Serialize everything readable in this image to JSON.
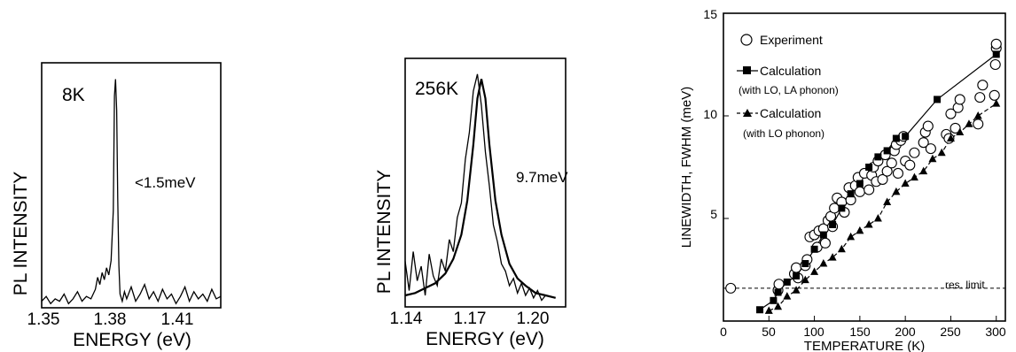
{
  "chart_data": [
    {
      "type": "line",
      "panel_label": "8K",
      "annotation": "<1.5meV",
      "xlabel": "ENERGY (eV)",
      "ylabel": "PL INTENSITY",
      "x_ticks": [
        "1.35",
        "1.38",
        "1.41"
      ],
      "xlim": [
        1.35,
        1.43
      ],
      "ylim": [
        0,
        1
      ],
      "series": [
        {
          "x": [
            1.35,
            1.352,
            1.354,
            1.356,
            1.358,
            1.36,
            1.362,
            1.364,
            1.366,
            1.368,
            1.37,
            1.372,
            1.374,
            1.375,
            1.376,
            1.377,
            1.378,
            1.379,
            1.38,
            1.381,
            1.382,
            1.3825,
            1.383,
            1.3835,
            1.384,
            1.3845,
            1.385,
            1.386,
            1.387,
            1.388,
            1.39,
            1.392,
            1.394,
            1.396,
            1.398,
            1.4,
            1.402,
            1.404,
            1.406,
            1.408,
            1.41,
            1.412,
            1.414,
            1.416,
            1.418,
            1.42,
            1.422,
            1.424,
            1.426,
            1.428,
            1.43
          ],
          "y": [
            0.02,
            0.04,
            0.01,
            0.03,
            0.02,
            0.05,
            0.01,
            0.03,
            0.06,
            0.02,
            0.04,
            0.03,
            0.07,
            0.12,
            0.09,
            0.14,
            0.11,
            0.16,
            0.13,
            0.19,
            0.4,
            0.88,
            0.95,
            0.82,
            0.45,
            0.17,
            0.05,
            0.02,
            0.06,
            0.03,
            0.08,
            0.02,
            0.05,
            0.09,
            0.03,
            0.06,
            0.02,
            0.07,
            0.03,
            0.05,
            0.01,
            0.04,
            0.08,
            0.02,
            0.06,
            0.03,
            0.05,
            0.02,
            0.07,
            0.03,
            0.04
          ]
        }
      ]
    },
    {
      "type": "line",
      "panel_label": "256K",
      "annotation": "9.7meV",
      "xlabel": "ENERGY (eV)",
      "ylabel": "PL INTENSITY",
      "x_ticks": [
        "1.14",
        "1.17",
        "1.20"
      ],
      "xlim": [
        1.14,
        1.22
      ],
      "ylim": [
        0,
        1
      ],
      "series": [
        {
          "x": [
            1.14,
            1.142,
            1.144,
            1.146,
            1.148,
            1.15,
            1.152,
            1.154,
            1.156,
            1.158,
            1.16,
            1.162,
            1.164,
            1.166,
            1.168,
            1.17,
            1.172,
            1.174,
            1.176,
            1.178,
            1.18,
            1.182,
            1.184,
            1.186,
            1.188,
            1.19,
            1.192,
            1.194,
            1.196,
            1.198,
            1.2,
            1.202,
            1.204,
            1.206,
            1.208,
            1.21
          ],
          "y": [
            0.18,
            0.06,
            0.22,
            0.1,
            0.16,
            0.04,
            0.21,
            0.12,
            0.08,
            0.19,
            0.14,
            0.27,
            0.22,
            0.36,
            0.42,
            0.6,
            0.71,
            0.88,
            0.95,
            0.82,
            0.63,
            0.49,
            0.33,
            0.26,
            0.17,
            0.14,
            0.08,
            0.11,
            0.05,
            0.09,
            0.04,
            0.07,
            0.03,
            0.06,
            0.02,
            0.04
          ]
        },
        {
          "x": [
            1.14,
            1.145,
            1.15,
            1.155,
            1.16,
            1.164,
            1.168,
            1.171,
            1.174,
            1.176,
            1.178,
            1.18,
            1.182,
            1.185,
            1.188,
            1.192,
            1.196,
            1.2,
            1.205,
            1.21,
            1.215
          ],
          "y": [
            0.04,
            0.05,
            0.07,
            0.09,
            0.13,
            0.19,
            0.29,
            0.43,
            0.66,
            0.85,
            0.93,
            0.85,
            0.66,
            0.43,
            0.29,
            0.17,
            0.11,
            0.08,
            0.05,
            0.04,
            0.03
          ]
        }
      ]
    },
    {
      "type": "scatter",
      "xlabel": "TEMPERATURE (K)",
      "ylabel": "LINEWIDTH, FWHM (meV)",
      "xlim": [
        0,
        310
      ],
      "ylim": [
        0,
        15
      ],
      "x_ticks": [
        "0",
        "50",
        "100",
        "150",
        "200",
        "250",
        "300"
      ],
      "y_ticks": [
        "5",
        "10",
        "15"
      ],
      "legend": {
        "experiment": "Experiment",
        "calc1_line1": "Calculation",
        "calc1_line2": "(with LO, LA phonon)",
        "calc2_line1": "Calculation",
        "calc2_line2": "(with LO phonon)"
      },
      "res_limit_label": "res. limit",
      "res_limit": 1.6,
      "series": [
        {
          "name": "Experiment",
          "marker": "open-circle",
          "x": [
            8,
            60,
            61,
            78,
            80,
            82,
            90,
            92,
            95,
            100,
            103,
            105,
            110,
            112,
            115,
            118,
            120,
            122,
            125,
            130,
            133,
            138,
            140,
            145,
            148,
            150,
            155,
            160,
            163,
            165,
            168,
            170,
            175,
            178,
            180,
            185,
            188,
            190,
            192,
            195,
            198,
            200,
            205,
            210,
            220,
            222,
            225,
            228,
            245,
            248,
            250,
            255,
            258,
            260,
            280,
            282,
            285,
            298,
            299,
            300,
            300
          ],
          "y": [
            1.6,
            1.5,
            1.8,
            2.3,
            2.6,
            2.1,
            2.7,
            3.0,
            4.1,
            4.2,
            3.6,
            4.4,
            4.5,
            3.8,
            4.9,
            5.1,
            4.6,
            5.5,
            6.0,
            5.8,
            5.3,
            6.5,
            5.9,
            6.6,
            7.0,
            6.3,
            7.2,
            6.4,
            7.1,
            7.5,
            6.8,
            7.8,
            6.9,
            8.1,
            7.3,
            7.7,
            8.3,
            8.6,
            7.2,
            8.8,
            9.0,
            7.8,
            7.6,
            8.2,
            8.7,
            9.2,
            9.5,
            8.4,
            9.1,
            8.9,
            10.1,
            9.4,
            10.4,
            10.8,
            9.6,
            10.9,
            11.5,
            11.0,
            12.5,
            13.3,
            13.5
          ]
        },
        {
          "name": "Calculation",
          "marker": "filled-square",
          "line": "solid",
          "x": [
            40,
            55,
            60,
            70,
            80,
            90,
            100,
            110,
            120,
            130,
            140,
            150,
            160,
            170,
            180,
            190,
            200,
            235,
            300
          ],
          "y": [
            0.55,
            1.0,
            1.4,
            1.9,
            2.2,
            2.8,
            3.5,
            4.2,
            4.7,
            5.5,
            6.2,
            6.7,
            7.5,
            8.0,
            8.3,
            8.9,
            9.0,
            10.8,
            13.0
          ]
        },
        {
          "name": "Calculation",
          "marker": "filled-triangle",
          "line": "dashed",
          "x": [
            50,
            60,
            70,
            80,
            90,
            100,
            110,
            120,
            130,
            140,
            150,
            160,
            170,
            180,
            190,
            200,
            210,
            220,
            230,
            240,
            250,
            260,
            270,
            280,
            300
          ],
          "y": [
            0.5,
            0.7,
            1.2,
            1.5,
            2.0,
            2.4,
            2.8,
            3.1,
            3.5,
            4.1,
            4.4,
            4.7,
            5.0,
            5.8,
            6.3,
            6.7,
            7.0,
            7.3,
            7.9,
            8.2,
            8.9,
            9.2,
            9.6,
            10.0,
            10.6
          ]
        }
      ]
    }
  ]
}
